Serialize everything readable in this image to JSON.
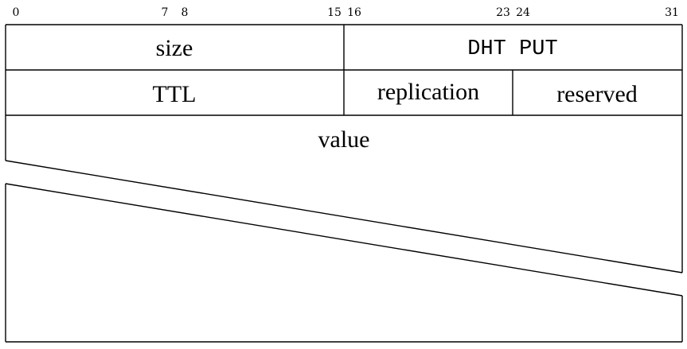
{
  "bit_labels": {
    "b0": "0",
    "b7": "7",
    "b8": "8",
    "b15": "15",
    "b16": "16",
    "b23": "23",
    "b24": "24",
    "b31": "31"
  },
  "row1": {
    "size": "size",
    "type": "DHT PUT"
  },
  "row2": {
    "ttl": "TTL",
    "replication": "replication",
    "reserved": "reserved"
  },
  "row3": {
    "value": "value"
  }
}
